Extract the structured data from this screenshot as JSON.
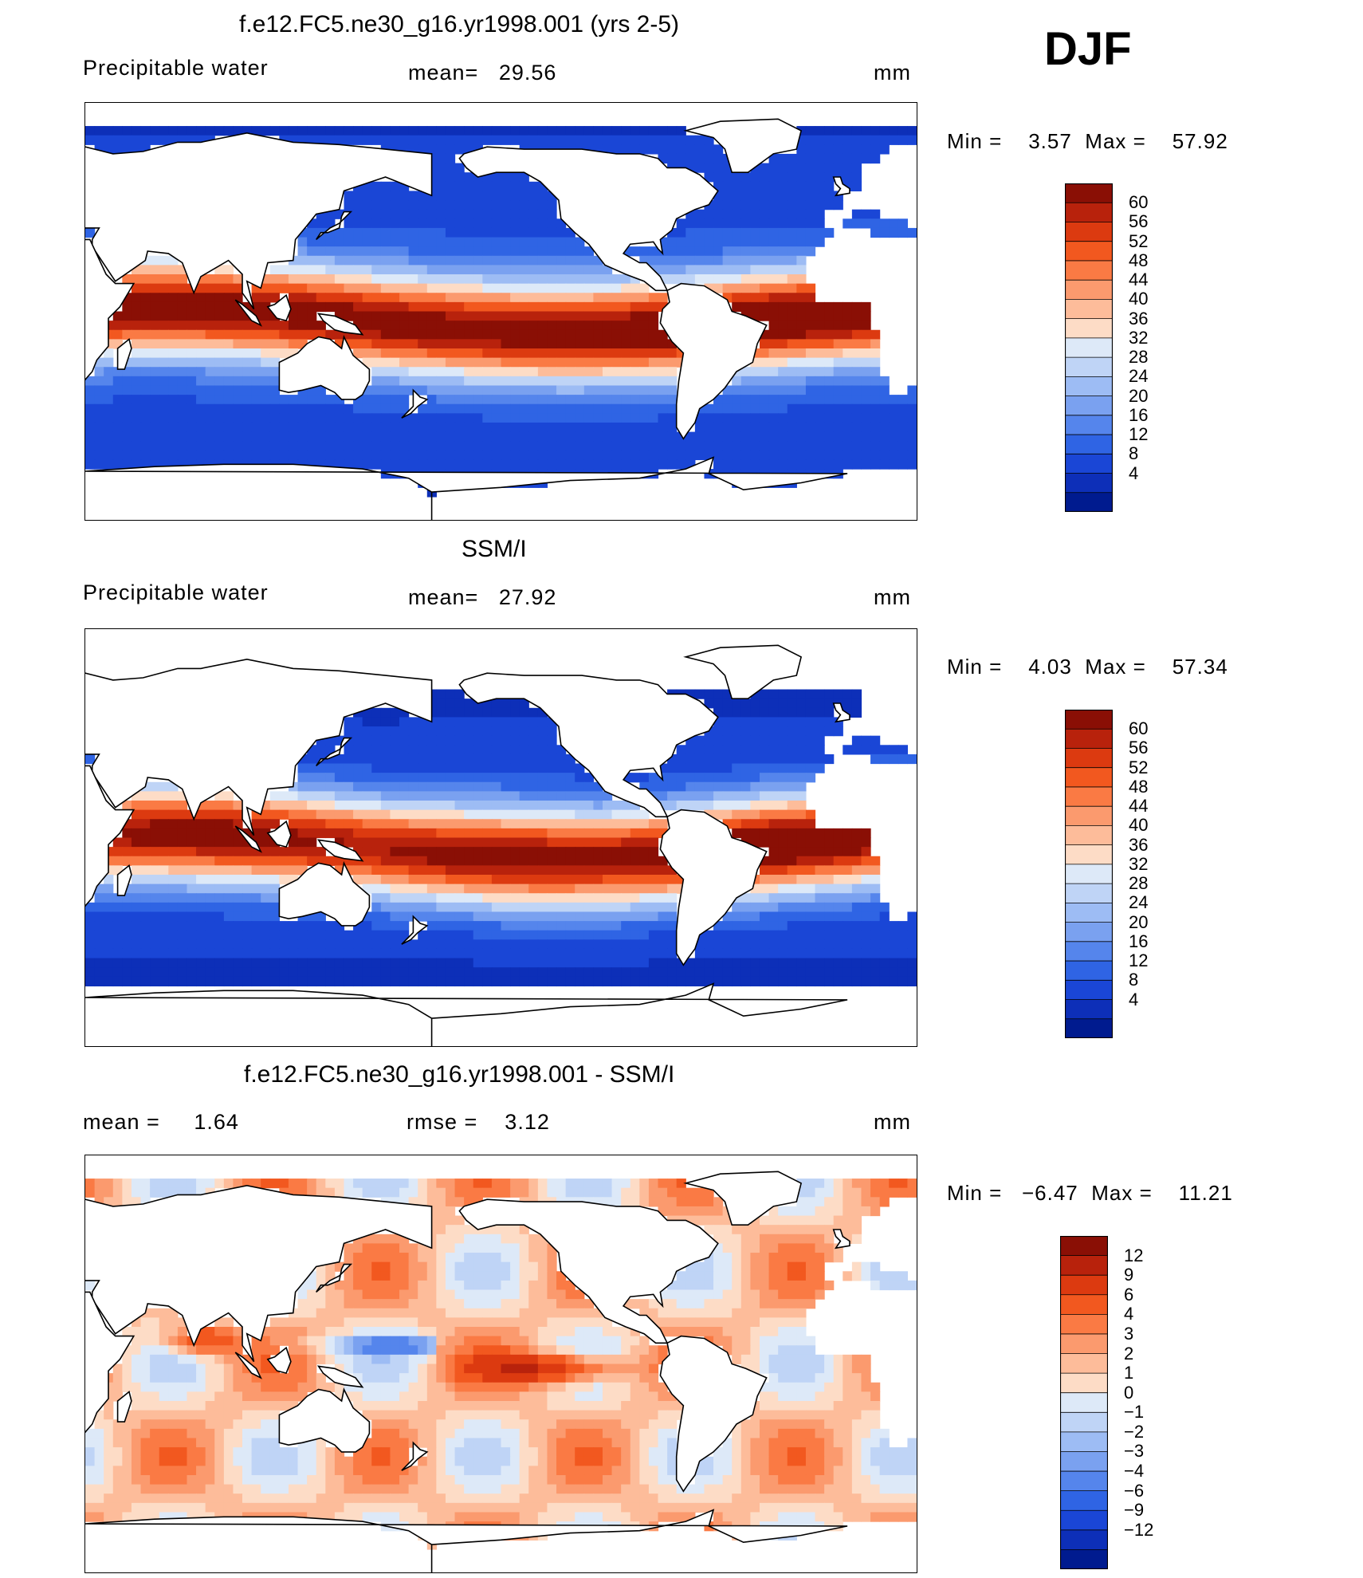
{
  "season": "DJF",
  "panels": [
    {
      "id": "model",
      "title": "f.e12.FC5.ne30_g16.yr1998.001 (yrs 2-5)",
      "left_label": "Precipitable water",
      "center_label": "mean=",
      "center_value": "29.56",
      "unit": "mm",
      "min_label": "Min =",
      "min_value": "3.57",
      "max_label": "Max =",
      "max_value": "57.92",
      "colorbar_ticks": [
        "60",
        "56",
        "52",
        "48",
        "44",
        "40",
        "36",
        "32",
        "28",
        "24",
        "20",
        "16",
        "12",
        "8",
        "4"
      ],
      "colorbar_colors": [
        "#8a0f05",
        "#b8220c",
        "#dc3a10",
        "#f2581f",
        "#fa7a44",
        "#fb9a6e",
        "#fdbc9a",
        "#fddcc6",
        "#dde9f8",
        "#bfd4f6",
        "#9dbcf4",
        "#7aa1f0",
        "#5585ec",
        "#2f64e4",
        "#1a46d6",
        "#0d2fb8",
        "#001b8f"
      ]
    },
    {
      "id": "obs",
      "title": "SSM/I",
      "left_label": "Precipitable water",
      "center_label": "mean=",
      "center_value": "27.92",
      "unit": "mm",
      "min_label": "Min =",
      "min_value": "4.03",
      "max_label": "Max =",
      "max_value": "57.34",
      "colorbar_ticks": [
        "60",
        "56",
        "52",
        "48",
        "44",
        "40",
        "36",
        "32",
        "28",
        "24",
        "20",
        "16",
        "12",
        "8",
        "4"
      ],
      "colorbar_colors": [
        "#8a0f05",
        "#b8220c",
        "#dc3a10",
        "#f2581f",
        "#fa7a44",
        "#fb9a6e",
        "#fdbc9a",
        "#fddcc6",
        "#dde9f8",
        "#bfd4f6",
        "#9dbcf4",
        "#7aa1f0",
        "#5585ec",
        "#2f64e4",
        "#1a46d6",
        "#0d2fb8",
        "#001b8f"
      ]
    },
    {
      "id": "diff",
      "title": "f.e12.FC5.ne30_g16.yr1998.001 - SSM/I",
      "left_label": "mean =",
      "left_value": "1.64",
      "center_label": "rmse =",
      "center_value": "3.12",
      "unit": "mm",
      "min_label": "Min =",
      "min_value": "−6.47",
      "max_label": "Max =",
      "max_value": "11.21",
      "colorbar_ticks": [
        "12",
        "9",
        "6",
        "4",
        "3",
        "2",
        "1",
        "0",
        "−1",
        "−2",
        "−3",
        "−4",
        "−6",
        "−9",
        "−12"
      ],
      "colorbar_colors": [
        "#8a0f05",
        "#b8220c",
        "#dc3a10",
        "#f2581f",
        "#fa7a44",
        "#fb9a6e",
        "#fdbc9a",
        "#fddcc6",
        "#dde9f8",
        "#bfd4f6",
        "#9dbcf4",
        "#7aa1f0",
        "#5585ec",
        "#2f64e4",
        "#1a46d6",
        "#0d2fb8",
        "#001b8f"
      ]
    }
  ]
}
